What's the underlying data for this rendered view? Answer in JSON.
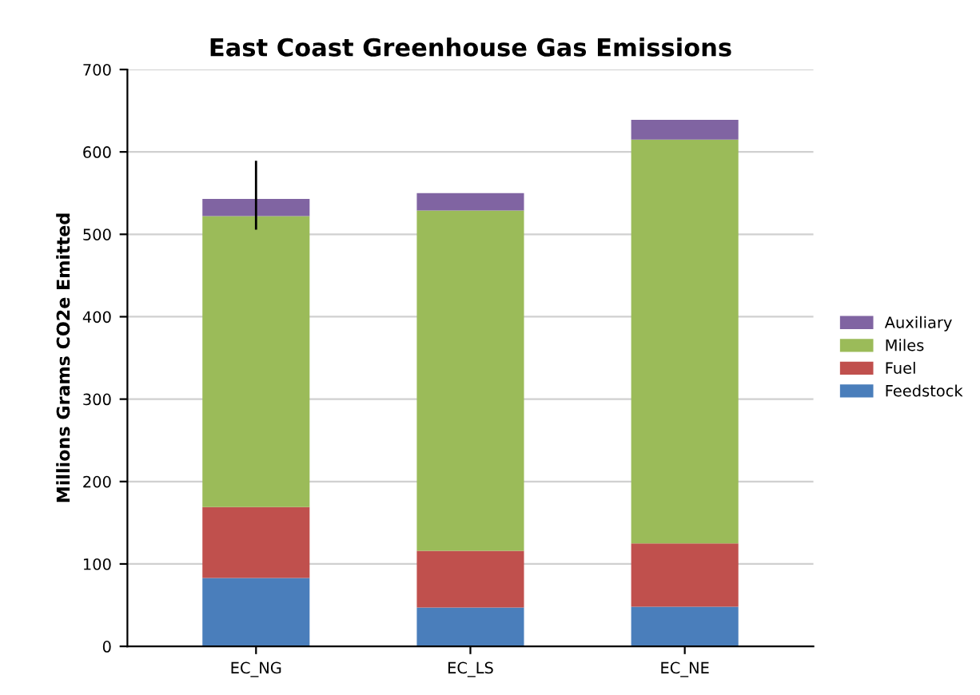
{
  "chart_data": {
    "type": "bar",
    "stacked": true,
    "title": "East Coast Greenhouse Gas Emissions",
    "ylabel": "Millions Grams CO2e Emitted",
    "categories": [
      "EC_NG",
      "EC_LS",
      "EC_NE"
    ],
    "series": [
      {
        "name": "Feedstock",
        "color": "#4a7ebb",
        "values": [
          83,
          47,
          48
        ]
      },
      {
        "name": "Fuel",
        "color": "#c0504d",
        "values": [
          86,
          69,
          77
        ]
      },
      {
        "name": "Miles",
        "color": "#9bbb59",
        "values": [
          353,
          413,
          490
        ]
      },
      {
        "name": "Auxiliary",
        "color": "#8064a2",
        "values": [
          21,
          21,
          24
        ],
        "errors": [
          [
            507,
            588
          ],
          null,
          null
        ]
      }
    ],
    "ylim": [
      0,
      700
    ],
    "yticks": [
      0,
      100,
      200,
      300,
      400,
      500,
      600,
      700
    ],
    "grid": "y",
    "legend": "right"
  }
}
